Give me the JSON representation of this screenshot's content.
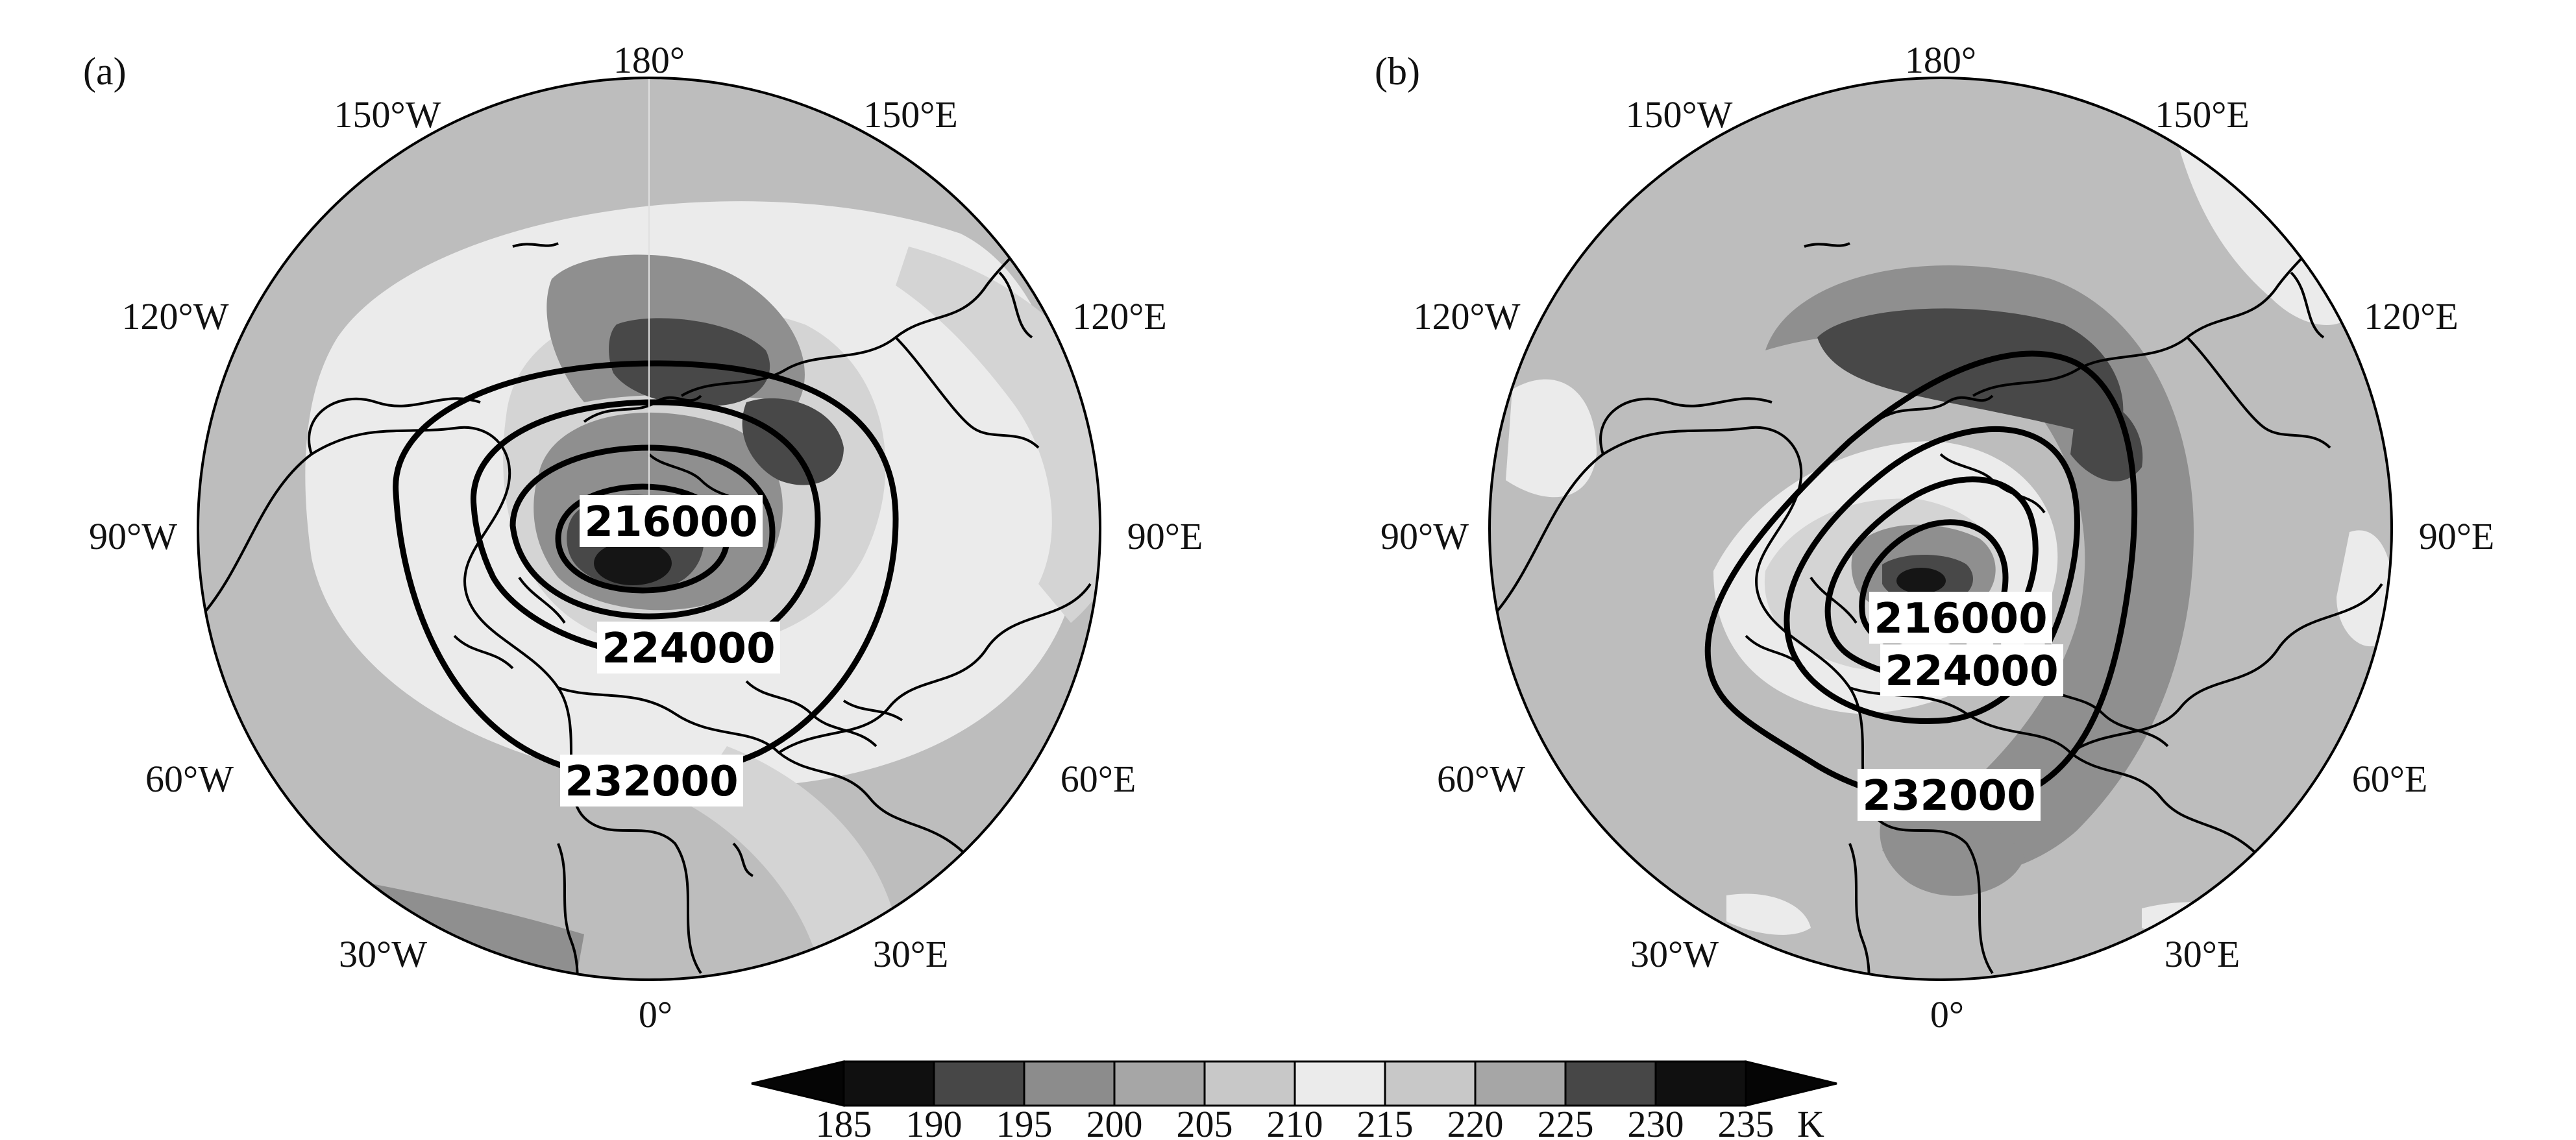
{
  "panels": [
    {
      "id": "a",
      "label": "(a)",
      "longitude_labels": [
        "180°",
        "150°E",
        "120°E",
        "90°E",
        "60°E",
        "30°E",
        "0°",
        "30°W",
        "60°W",
        "90°W",
        "120°W",
        "150°W"
      ],
      "contour_labels": [
        "216000",
        "224000",
        "232000"
      ]
    },
    {
      "id": "b",
      "label": "(b)",
      "longitude_labels": [
        "180°",
        "150°E",
        "120°E",
        "90°E",
        "60°E",
        "30°E",
        "0°",
        "30°W",
        "60°W",
        "90°W",
        "120°W",
        "150°W"
      ],
      "contour_labels": [
        "216000",
        "224000",
        "232000"
      ]
    }
  ],
  "colorbar": {
    "ticks": [
      "185",
      "190",
      "195",
      "200",
      "205",
      "210",
      "215",
      "220",
      "225",
      "230",
      "235"
    ],
    "unit": "K",
    "colors": [
      "#101010",
      "#474747",
      "#8c8c8c",
      "#a6a6a6",
      "#c8c8c8",
      "#ebebeb",
      "#c8c8c8",
      "#a6a6a6",
      "#474747",
      "#101010"
    ],
    "lower_extend_color": "#050505",
    "upper_extend_color": "#050505"
  },
  "shading_colors": {
    "background": "#bdbdbd",
    "lightest": "#ebebeb",
    "light": "#d4d4d4",
    "mid": "#8f8f8f",
    "dark": "#484848",
    "darkest": "#151515"
  }
}
